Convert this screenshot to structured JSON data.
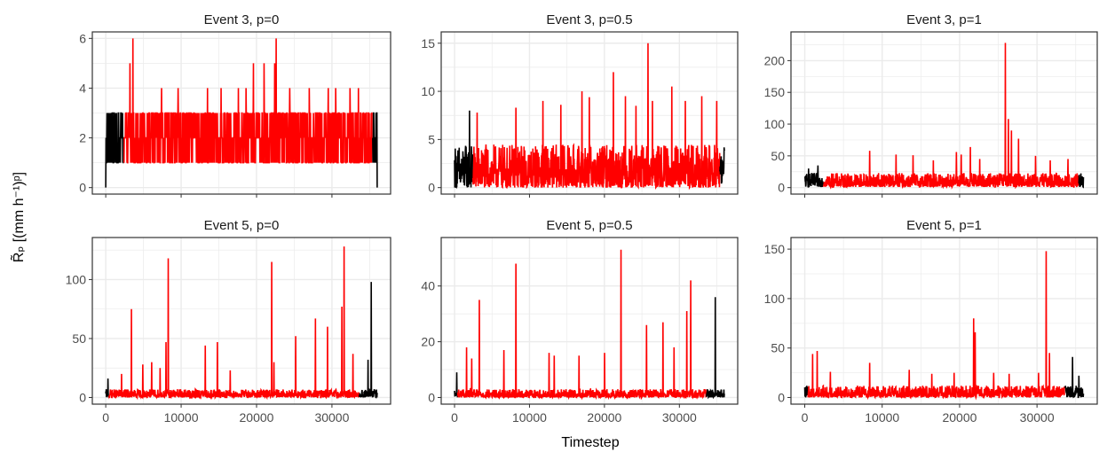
{
  "figure": {
    "xlabel": "Timestep",
    "ylabel": "R̃ₚ [(mm h⁻¹)ᵖ]"
  },
  "colors": {
    "event_segment": "#ff0000",
    "outside_segment": "#000000",
    "grid": "#ebebeb",
    "panel_border": "#333333"
  },
  "chart_data": [
    {
      "type": "line",
      "title": "Event 3, p=0",
      "xlim": [
        0,
        36000
      ],
      "ylim": [
        0,
        6
      ],
      "xticks": [
        0,
        10000,
        20000,
        30000
      ],
      "yticks": [
        0,
        2,
        4,
        6
      ],
      "x_range": [
        0,
        36000
      ],
      "event_window": [
        2400,
        35400
      ],
      "base_noise": 2.5,
      "baseline": 0,
      "integer": true,
      "peaks": [
        [
          3200,
          5
        ],
        [
          3600,
          6
        ],
        [
          7400,
          4
        ],
        [
          9600,
          4
        ],
        [
          13500,
          4
        ],
        [
          15300,
          4
        ],
        [
          17600,
          4
        ],
        [
          18600,
          4
        ],
        [
          19600,
          5
        ],
        [
          21000,
          5
        ],
        [
          22400,
          5
        ],
        [
          22600,
          6
        ],
        [
          24400,
          4
        ],
        [
          27000,
          4
        ],
        [
          29500,
          4
        ],
        [
          30500,
          4
        ],
        [
          32400,
          4
        ],
        [
          33500,
          4
        ]
      ],
      "series": [
        {
          "name": "",
          "color": "#ff0000"
        }
      ]
    },
    {
      "type": "line",
      "title": "Event 3, p=0.5",
      "xlim": [
        0,
        36000
      ],
      "ylim": [
        0,
        15.5
      ],
      "xticks": [
        0,
        10000,
        20000,
        30000
      ],
      "yticks": [
        0,
        5,
        10,
        15
      ],
      "x_range": [
        0,
        36000
      ],
      "event_window": [
        2400,
        35400
      ],
      "base_noise": 4.5,
      "baseline": 0,
      "integer": false,
      "peaks": [
        [
          2000,
          8
        ],
        [
          3000,
          7.8
        ],
        [
          8200,
          8.3
        ],
        [
          11800,
          9
        ],
        [
          14200,
          8.6
        ],
        [
          17000,
          10
        ],
        [
          18000,
          9.4
        ],
        [
          21200,
          12
        ],
        [
          22800,
          9.5
        ],
        [
          24200,
          8.5
        ],
        [
          25800,
          15
        ],
        [
          26400,
          9
        ],
        [
          29000,
          10.5
        ],
        [
          30800,
          9
        ],
        [
          33000,
          9.5
        ],
        [
          35000,
          9
        ]
      ],
      "series": [
        {
          "name": "",
          "color": "#ff0000"
        }
      ]
    },
    {
      "type": "line",
      "title": "Event 3, p=1",
      "xlim": [
        0,
        36000
      ],
      "ylim": [
        0,
        235
      ],
      "xticks": [
        0,
        10000,
        20000,
        30000
      ],
      "yticks": [
        0,
        50,
        100,
        150,
        200
      ],
      "x_range": [
        0,
        36000
      ],
      "event_window": [
        2400,
        35400
      ],
      "base_noise": 22,
      "baseline": 1,
      "integer": false,
      "peaks": [
        [
          500,
          30
        ],
        [
          1700,
          35
        ],
        [
          8400,
          58
        ],
        [
          11800,
          52
        ],
        [
          14000,
          51
        ],
        [
          16600,
          43
        ],
        [
          19600,
          56
        ],
        [
          20200,
          52
        ],
        [
          21400,
          64
        ],
        [
          22600,
          45
        ],
        [
          25900,
          228
        ],
        [
          26300,
          108
        ],
        [
          26700,
          90
        ],
        [
          27600,
          77
        ],
        [
          29800,
          50
        ],
        [
          31700,
          43
        ],
        [
          34000,
          45
        ]
      ],
      "series": [
        {
          "name": "",
          "color": "#ff0000"
        }
      ]
    },
    {
      "type": "line",
      "title": "Event 5, p=0",
      "xlim": [
        0,
        36000
      ],
      "ylim": [
        0,
        130
      ],
      "xticks": [
        0,
        10000,
        20000,
        30000
      ],
      "yticks": [
        0,
        50,
        100
      ],
      "x_range": [
        0,
        36000
      ],
      "event_window": [
        400,
        33600
      ],
      "base_noise": 7,
      "baseline": 0,
      "integer": false,
      "peaks": [
        [
          300,
          16
        ],
        [
          2100,
          20
        ],
        [
          3400,
          75
        ],
        [
          4900,
          28
        ],
        [
          6100,
          30
        ],
        [
          7200,
          25
        ],
        [
          8000,
          47
        ],
        [
          8300,
          118
        ],
        [
          13200,
          44
        ],
        [
          14800,
          47
        ],
        [
          16500,
          23
        ],
        [
          22000,
          115
        ],
        [
          22300,
          30
        ],
        [
          25200,
          52
        ],
        [
          27800,
          67
        ],
        [
          29400,
          60
        ],
        [
          31300,
          77
        ],
        [
          31600,
          128
        ],
        [
          32800,
          37
        ],
        [
          34800,
          32
        ],
        [
          35200,
          98
        ]
      ],
      "series": [
        {
          "name": "",
          "color": "#ff0000"
        }
      ]
    },
    {
      "type": "line",
      "title": "Event 5, p=0.5",
      "xlim": [
        0,
        36000
      ],
      "ylim": [
        0,
        55
      ],
      "xticks": [
        0,
        10000,
        20000,
        30000
      ],
      "yticks": [
        0,
        20,
        40
      ],
      "x_range": [
        0,
        36000
      ],
      "event_window": [
        400,
        33600
      ],
      "base_noise": 3,
      "baseline": 0,
      "integer": false,
      "peaks": [
        [
          300,
          9
        ],
        [
          1600,
          18
        ],
        [
          2300,
          14
        ],
        [
          3300,
          35
        ],
        [
          6600,
          17
        ],
        [
          8200,
          48
        ],
        [
          12600,
          16
        ],
        [
          13300,
          15
        ],
        [
          16600,
          15
        ],
        [
          20000,
          16
        ],
        [
          22200,
          53
        ],
        [
          25600,
          26
        ],
        [
          27800,
          27
        ],
        [
          29300,
          18
        ],
        [
          31000,
          31
        ],
        [
          31500,
          42
        ],
        [
          34800,
          36
        ]
      ],
      "series": [
        {
          "name": "",
          "color": "#ff0000"
        }
      ]
    },
    {
      "type": "line",
      "title": "Event 5, p=1",
      "xlim": [
        0,
        36000
      ],
      "ylim": [
        0,
        155
      ],
      "xticks": [
        0,
        10000,
        20000,
        30000
      ],
      "yticks": [
        0,
        50,
        100,
        150
      ],
      "x_range": [
        0,
        36000
      ],
      "event_window": [
        400,
        33600
      ],
      "base_noise": 12,
      "baseline": 0,
      "integer": false,
      "peaks": [
        [
          1000,
          44
        ],
        [
          1600,
          47
        ],
        [
          3300,
          26
        ],
        [
          8400,
          35
        ],
        [
          13500,
          28
        ],
        [
          16400,
          24
        ],
        [
          19300,
          25
        ],
        [
          21800,
          80
        ],
        [
          22000,
          66
        ],
        [
          24400,
          25
        ],
        [
          26400,
          24
        ],
        [
          30200,
          25
        ],
        [
          31200,
          148
        ],
        [
          31600,
          45
        ],
        [
          34600,
          41
        ],
        [
          35400,
          22
        ]
      ],
      "series": [
        {
          "name": "",
          "color": "#ff0000"
        }
      ]
    }
  ]
}
